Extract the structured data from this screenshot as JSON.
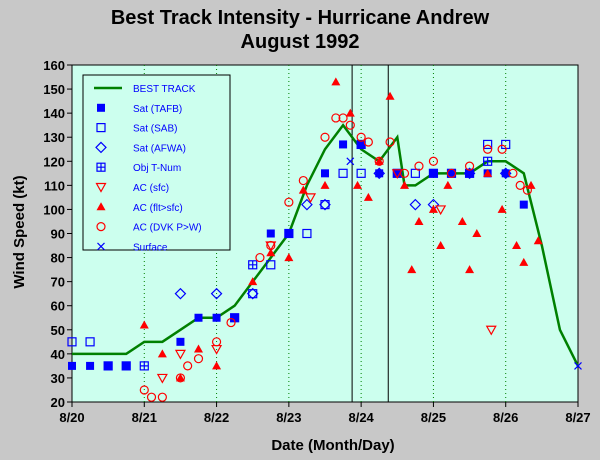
{
  "chart_data": {
    "type": "scatter",
    "title": [
      "Best Track Intensity - Hurricane Andrew",
      "August 1992"
    ],
    "xlabel": "Date (Month/Day)",
    "ylabel": "Wind Speed (kt)",
    "xlim": [
      0,
      7
    ],
    "ylim": [
      20,
      160
    ],
    "x_unit_note": "days since 8/20 00Z",
    "xticks": [
      {
        "v": 0,
        "label": "8/20"
      },
      {
        "v": 1,
        "label": "8/21"
      },
      {
        "v": 2,
        "label": "8/22"
      },
      {
        "v": 3,
        "label": "8/23"
      },
      {
        "v": 4,
        "label": "8/24"
      },
      {
        "v": 5,
        "label": "8/25"
      },
      {
        "v": 6,
        "label": "8/26"
      },
      {
        "v": 7,
        "label": "8/27"
      }
    ],
    "yticks": [
      20,
      30,
      40,
      50,
      60,
      70,
      80,
      90,
      100,
      110,
      120,
      130,
      140,
      150,
      160
    ],
    "grid": "dotted vertical at each day",
    "legend_position": "upper-left",
    "colors": {
      "background": "#ccffee",
      "frame": "#c8c8c8",
      "best_track": "#008000",
      "blue": "#0000ff",
      "red": "#ff0000",
      "grid": "#008000"
    },
    "landfall_lines": [
      3.875,
      4.375
    ],
    "series": [
      {
        "name": "BEST TRACK",
        "type": "line",
        "color": "#008000",
        "points": [
          [
            0,
            40
          ],
          [
            0.25,
            40
          ],
          [
            0.5,
            40
          ],
          [
            0.75,
            40
          ],
          [
            1,
            45
          ],
          [
            1.25,
            45
          ],
          [
            1.5,
            50
          ],
          [
            1.75,
            55
          ],
          [
            2,
            55
          ],
          [
            2.25,
            60
          ],
          [
            2.5,
            70
          ],
          [
            2.75,
            80
          ],
          [
            3,
            90
          ],
          [
            3.25,
            110
          ],
          [
            3.5,
            125
          ],
          [
            3.75,
            135
          ],
          [
            4,
            125
          ],
          [
            4.25,
            120
          ],
          [
            4.5,
            130
          ],
          [
            4.6,
            110
          ],
          [
            4.75,
            110
          ],
          [
            5,
            115
          ],
          [
            5.25,
            115
          ],
          [
            5.5,
            115
          ],
          [
            5.75,
            120
          ],
          [
            6,
            120
          ],
          [
            6.25,
            115
          ],
          [
            6.5,
            85
          ],
          [
            6.75,
            50
          ],
          [
            7,
            35
          ]
        ]
      },
      {
        "name": "Sat (TAFB)",
        "marker": "filled-square",
        "color": "#0000ff",
        "points": [
          [
            0,
            35
          ],
          [
            0.25,
            35
          ],
          [
            0.5,
            35
          ],
          [
            0.75,
            35
          ],
          [
            1.5,
            45
          ],
          [
            1.75,
            55
          ],
          [
            2,
            55
          ],
          [
            2.25,
            55
          ],
          [
            2.75,
            90
          ],
          [
            3,
            90
          ],
          [
            3.5,
            115
          ],
          [
            3.75,
            127
          ],
          [
            4,
            127
          ],
          [
            4.25,
            115
          ],
          [
            4.5,
            115
          ],
          [
            5,
            115
          ],
          [
            5.25,
            115
          ],
          [
            5.5,
            115
          ],
          [
            5.75,
            115
          ],
          [
            6,
            115
          ],
          [
            6.25,
            102
          ]
        ]
      },
      {
        "name": "Sat (SAB)",
        "marker": "open-square",
        "color": "#0000ff",
        "points": [
          [
            0,
            45
          ],
          [
            0.25,
            45
          ],
          [
            2.25,
            55
          ],
          [
            2.5,
            65
          ],
          [
            2.75,
            77
          ],
          [
            3.25,
            90
          ],
          [
            3.5,
            102
          ],
          [
            3.75,
            115
          ],
          [
            4,
            115
          ],
          [
            4.75,
            115
          ],
          [
            5.25,
            115
          ],
          [
            5.5,
            115
          ],
          [
            5.75,
            127
          ],
          [
            6,
            127
          ]
        ]
      },
      {
        "name": "Sat (AFWA)",
        "marker": "open-diamond",
        "color": "#0000ff",
        "points": [
          [
            1.5,
            65
          ],
          [
            2,
            65
          ],
          [
            2.5,
            65
          ],
          [
            3.25,
            102
          ],
          [
            3.5,
            102
          ],
          [
            4.25,
            115
          ],
          [
            4.75,
            102
          ],
          [
            5,
            102
          ],
          [
            5.5,
            115
          ],
          [
            6,
            115
          ]
        ]
      },
      {
        "name": "Obj T-Num",
        "marker": "square-plus",
        "color": "#0000ff",
        "points": [
          [
            0.5,
            35
          ],
          [
            0.75,
            35
          ],
          [
            1,
            35
          ],
          [
            2.5,
            77
          ],
          [
            3,
            90
          ],
          [
            4,
            127
          ],
          [
            4.5,
            115
          ],
          [
            5,
            115
          ],
          [
            5.75,
            120
          ]
        ]
      },
      {
        "name": "AC (sfc)",
        "marker": "open-triangle-down",
        "color": "#ff0000",
        "points": [
          [
            1.25,
            30
          ],
          [
            1.5,
            40
          ],
          [
            2,
            42
          ],
          [
            2.75,
            85
          ],
          [
            3.3,
            105
          ],
          [
            4.5,
            115
          ],
          [
            5.1,
            100
          ],
          [
            5.8,
            50
          ]
        ]
      },
      {
        "name": "AC (flt>sfc)",
        "marker": "filled-triangle",
        "color": "#ff0000",
        "points": [
          [
            1,
            52
          ],
          [
            1.25,
            40
          ],
          [
            1.5,
            30
          ],
          [
            1.75,
            42
          ],
          [
            2,
            35
          ],
          [
            2.5,
            70
          ],
          [
            2.75,
            82
          ],
          [
            3,
            80
          ],
          [
            3.2,
            108
          ],
          [
            3.5,
            110
          ],
          [
            3.65,
            153
          ],
          [
            3.85,
            140
          ],
          [
            3.95,
            110
          ],
          [
            4.1,
            105
          ],
          [
            4.25,
            120
          ],
          [
            4.4,
            147
          ],
          [
            4.6,
            110
          ],
          [
            4.7,
            75
          ],
          [
            4.8,
            95
          ],
          [
            5,
            100
          ],
          [
            5.1,
            85
          ],
          [
            5.2,
            110
          ],
          [
            5.4,
            95
          ],
          [
            5.5,
            75
          ],
          [
            5.6,
            90
          ],
          [
            5.75,
            115
          ],
          [
            5.95,
            100
          ],
          [
            6.15,
            85
          ],
          [
            6.25,
            78
          ],
          [
            6.35,
            110
          ],
          [
            6.45,
            87
          ]
        ]
      },
      {
        "name": "AC (DVK P>W)",
        "marker": "open-circle",
        "color": "#ff0000",
        "points": [
          [
            1,
            25
          ],
          [
            1.1,
            22
          ],
          [
            1.25,
            22
          ],
          [
            1.5,
            30
          ],
          [
            1.6,
            35
          ],
          [
            1.75,
            38
          ],
          [
            2,
            45
          ],
          [
            2.2,
            53
          ],
          [
            2.6,
            80
          ],
          [
            2.75,
            85
          ],
          [
            3,
            103
          ],
          [
            3.2,
            112
          ],
          [
            3.5,
            130
          ],
          [
            3.65,
            138
          ],
          [
            3.75,
            138
          ],
          [
            3.85,
            135
          ],
          [
            4,
            130
          ],
          [
            4.1,
            128
          ],
          [
            4.25,
            120
          ],
          [
            4.4,
            128
          ],
          [
            4.6,
            115
          ],
          [
            4.8,
            118
          ],
          [
            5,
            120
          ],
          [
            5.25,
            115
          ],
          [
            5.5,
            118
          ],
          [
            5.75,
            125
          ],
          [
            5.95,
            125
          ],
          [
            6.1,
            115
          ],
          [
            6.2,
            110
          ],
          [
            6.3,
            108
          ]
        ]
      },
      {
        "name": "Surface",
        "marker": "x",
        "color": "#0000ff",
        "points": [
          [
            3.85,
            120
          ],
          [
            7,
            35
          ]
        ]
      }
    ]
  }
}
